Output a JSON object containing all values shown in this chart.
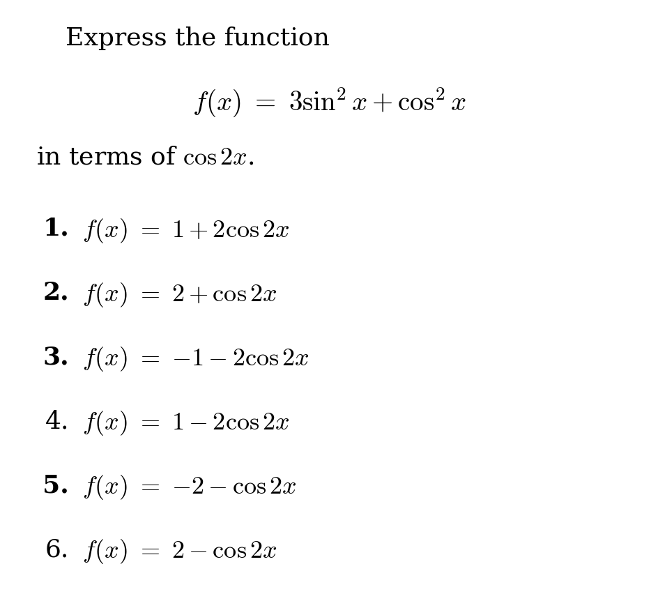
{
  "background_color": "#ffffff",
  "text_color": "#000000",
  "title_text": "Express the function",
  "title_fontsize": 26,
  "function_tex": "$f(x) \\ = \\ 3\\sin^2 x + \\cos^2 x$",
  "function_fontsize": 28,
  "subtitle_tex": "in terms of $\\cos 2x$.",
  "subtitle_fontsize": 26,
  "options": [
    {
      "num": "1.",
      "bold": true,
      "rhs": "$f(x) \\ = \\ 1 + 2\\cos 2x$"
    },
    {
      "num": "2.",
      "bold": true,
      "rhs": "$f(x) \\ = \\ 2 + \\cos 2x$"
    },
    {
      "num": "3.",
      "bold": true,
      "rhs": "$f(x) \\ = \\ {-1} - 2\\cos 2x$"
    },
    {
      "num": "4.",
      "bold": false,
      "rhs": "$f(x) \\ = \\ 1 - 2\\cos 2x$"
    },
    {
      "num": "5.",
      "bold": true,
      "rhs": "$f(x) \\ = \\ {-2} - \\cos 2x$"
    },
    {
      "num": "6.",
      "bold": false,
      "rhs": "$f(x) \\ = \\ 2 - \\cos 2x$"
    }
  ],
  "options_fontsize": 26
}
